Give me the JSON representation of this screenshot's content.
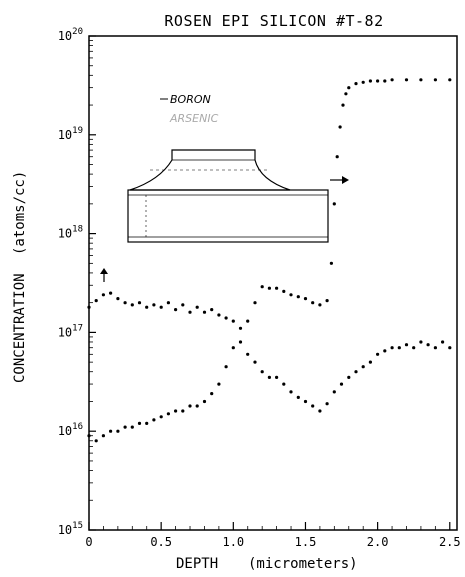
{
  "chart_data": {
    "type": "scatter",
    "title": "ROSEN EPI SILICON #T-82",
    "xlabel": "DEPTH",
    "xlabel_units": "(micrometers)",
    "ylabel": "CONCENTRATION",
    "ylabel_units": "(atoms/cc)",
    "y_scale": "log",
    "xlim": [
      0,
      2.55
    ],
    "ylim": [
      1000000000000000.0,
      1e+20
    ],
    "x_ticks": [
      "0",
      "0.5",
      "1.0",
      "1.5",
      "2.0",
      "2.5"
    ],
    "x_tick_values": [
      0,
      0.5,
      1.0,
      1.5,
      2.0,
      2.5
    ],
    "y_ticks": [
      {
        "base": "10",
        "exp": "15",
        "value": 1000000000000000.0
      },
      {
        "base": "10",
        "exp": "16",
        "value": 1e+16
      },
      {
        "base": "10",
        "exp": "17",
        "value": 1e+17
      },
      {
        "base": "10",
        "exp": "18",
        "value": 1e+18
      },
      {
        "base": "10",
        "exp": "19",
        "value": 1e+19
      },
      {
        "base": "10",
        "exp": "20",
        "value": 1e+20
      }
    ],
    "legend": {
      "label_1": "BORON",
      "label_2": "ARSENIC"
    },
    "series": [
      {
        "name": "BORON",
        "x": [
          0.0,
          0.05,
          0.1,
          0.15,
          0.2,
          0.25,
          0.3,
          0.35,
          0.4,
          0.45,
          0.5,
          0.55,
          0.6,
          0.65,
          0.7,
          0.75,
          0.8,
          0.85,
          0.9,
          0.95,
          1.0,
          1.05,
          1.1,
          1.15,
          1.2,
          1.25,
          1.3,
          1.35,
          1.4,
          1.45,
          1.5,
          1.55,
          1.6,
          1.65,
          1.68,
          1.7,
          1.72,
          1.74,
          1.76,
          1.78,
          1.8,
          1.85,
          1.9,
          1.95,
          2.0,
          2.05,
          2.1,
          2.2,
          2.3,
          2.4,
          2.5
        ],
        "y": [
          1.8e+17,
          2.1e+17,
          2.4e+17,
          2.5e+17,
          2.2e+17,
          2e+17,
          1.9e+17,
          2e+17,
          1.8e+17,
          1.9e+17,
          1.8e+17,
          2e+17,
          1.7e+17,
          1.9e+17,
          1.6e+17,
          1.8e+17,
          1.6e+17,
          1.7e+17,
          1.5e+17,
          1.4e+17,
          1.3e+17,
          1.1e+17,
          1.3e+17,
          2e+17,
          2.9e+17,
          2.8e+17,
          2.8e+17,
          2.6e+17,
          2.4e+17,
          2.3e+17,
          2.2e+17,
          2e+17,
          1.9e+17,
          2.1e+17,
          5e+17,
          2e+18,
          6e+18,
          1.2e+19,
          2e+19,
          2.6e+19,
          3e+19,
          3.3e+19,
          3.4e+19,
          3.5e+19,
          3.5e+19,
          3.5e+19,
          3.6e+19,
          3.6e+19,
          3.6e+19,
          3.6e+19,
          3.6e+19
        ]
      },
      {
        "name": "ARSENIC",
        "x": [
          0.0,
          0.05,
          0.1,
          0.15,
          0.2,
          0.25,
          0.3,
          0.35,
          0.4,
          0.45,
          0.5,
          0.55,
          0.6,
          0.65,
          0.7,
          0.75,
          0.8,
          0.85,
          0.9,
          0.95,
          1.0,
          1.05,
          1.1,
          1.15,
          1.2,
          1.25,
          1.3,
          1.35,
          1.4,
          1.45,
          1.5,
          1.55,
          1.6,
          1.65,
          1.7,
          1.75,
          1.8,
          1.85,
          1.9,
          1.95,
          2.0,
          2.05,
          2.1,
          2.15,
          2.2,
          2.25,
          2.3,
          2.35,
          2.4,
          2.45,
          2.5
        ],
        "y": [
          9000000000000000.0,
          8000000000000000.0,
          9000000000000000.0,
          1e+16,
          1e+16,
          1.1e+16,
          1.1e+16,
          1.2e+16,
          1.2e+16,
          1.3e+16,
          1.4e+16,
          1.5e+16,
          1.6e+16,
          1.6e+16,
          1.8e+16,
          1.8e+16,
          2e+16,
          2.4e+16,
          3e+16,
          4.5e+16,
          7e+16,
          8e+16,
          6e+16,
          5e+16,
          4e+16,
          3.5e+16,
          3.5e+16,
          3e+16,
          2.5e+16,
          2.2e+16,
          2e+16,
          1.8e+16,
          1.6e+16,
          1.9e+16,
          2.5e+16,
          3e+16,
          3.5e+16,
          4e+16,
          4.5e+16,
          5e+16,
          6e+16,
          6.5e+16,
          7e+16,
          7e+16,
          7.5e+16,
          7e+16,
          8e+16,
          7.5e+16,
          7e+16,
          8e+16,
          7e+16
        ]
      }
    ]
  }
}
